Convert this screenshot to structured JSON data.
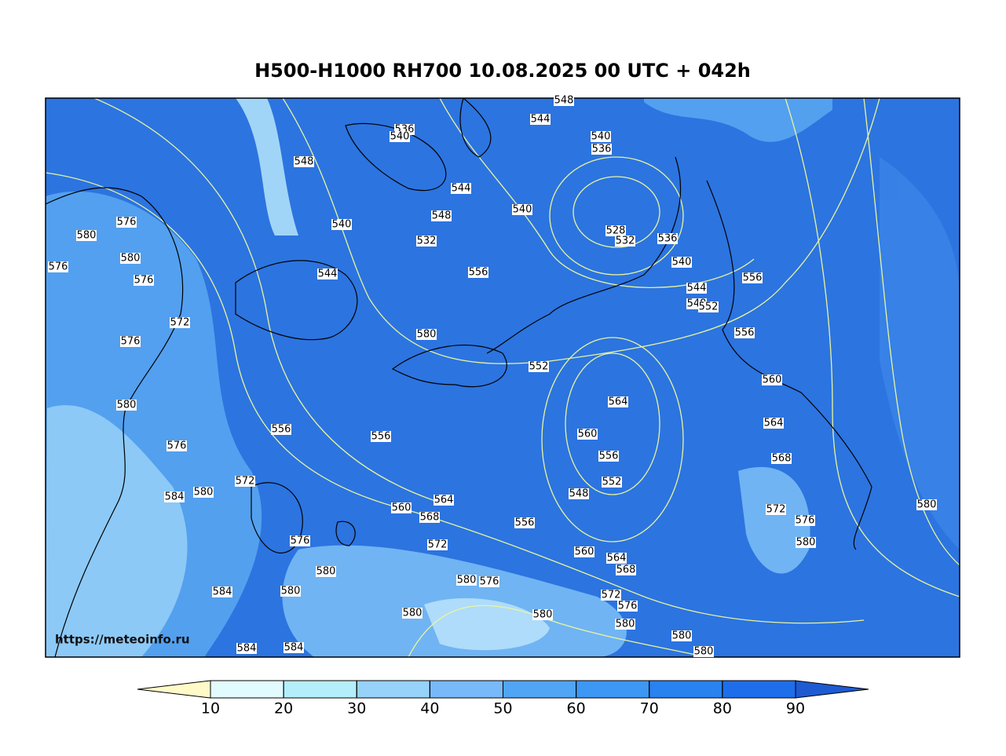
{
  "title": "H500-H1000 RH700 10.08.2025 00 UTC + 042h",
  "watermark": "https://meteoinfo.ru",
  "contour_labels": [
    548,
    536,
    540,
    544,
    540,
    536,
    548,
    544,
    576,
    580,
    540,
    548,
    540,
    528,
    532,
    536,
    540,
    532,
    580,
    576,
    576,
    544,
    556,
    556,
    544,
    548,
    552,
    572,
    556,
    576,
    580,
    552,
    560,
    564,
    580,
    556,
    556,
    560,
    564,
    556,
    568,
    576,
    572,
    552,
    584,
    580,
    548,
    564,
    560,
    568,
    572,
    576,
    580,
    556,
    576,
    572,
    580,
    560,
    564,
    568,
    580,
    580,
    576,
    584,
    580,
    572,
    576,
    580,
    580,
    580,
    580,
    584,
    584,
    580
  ],
  "colorbar": {
    "ticks": [
      10,
      20,
      30,
      40,
      50,
      60,
      70,
      80,
      90
    ],
    "under_color": "#fffac8",
    "over_color": "#1e5ad2",
    "colors": [
      "#e1fbff",
      "#b4eefa",
      "#96d2fa",
      "#78b9fa",
      "#50a5f5",
      "#3c97f5",
      "#2882f0",
      "#1e6eeb"
    ]
  }
}
